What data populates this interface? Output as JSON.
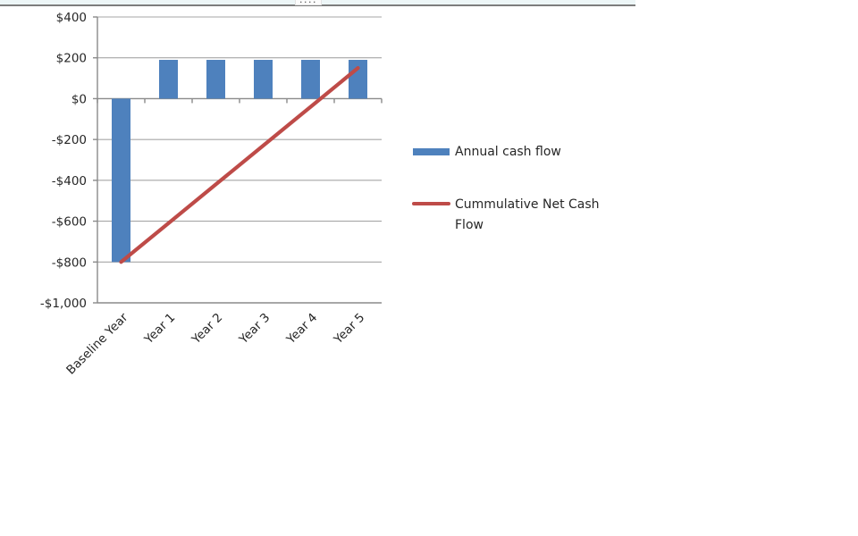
{
  "window": {
    "drag_dots": "····"
  },
  "colors": {
    "bar": "#4e81bd",
    "line": "#be4b48",
    "grid": "#a6a6a6",
    "axis": "#8a8a8a",
    "text": "#262626",
    "top_edge": "#7d7d7d",
    "top_strip_bg": "#edf6f7"
  },
  "chart_data": {
    "type": "bar",
    "categories": [
      "Baseline Year",
      "Year 1",
      "Year 2",
      "Year 3",
      "Year 4",
      "Year 5"
    ],
    "series": [
      {
        "name": "Annual cash flow",
        "type": "bar",
        "color": "#4e81bd",
        "values": [
          -800,
          190,
          190,
          190,
          190,
          190
        ]
      },
      {
        "name": "Cummulative Net Cash Flow",
        "type": "line",
        "color": "#be4b48",
        "values": [
          -800,
          -610,
          -420,
          -230,
          -40,
          150
        ]
      }
    ],
    "title": "",
    "xlabel": "",
    "ylabel": "",
    "ylim": [
      -1000,
      400
    ],
    "y_ticks": [
      400,
      200,
      0,
      -200,
      -400,
      -600,
      -800,
      -1000
    ],
    "y_tick_labels": [
      "$400",
      "$200",
      "$0",
      "-$200",
      "-$400",
      "-$600",
      "-$800",
      "-$1,000"
    ],
    "grid": true,
    "legend_position": "right"
  },
  "legend": {
    "items": [
      {
        "label": "Annual cash flow",
        "swatch": "bar"
      },
      {
        "label": "Cummulative Net Cash Flow",
        "swatch": "line"
      }
    ]
  }
}
